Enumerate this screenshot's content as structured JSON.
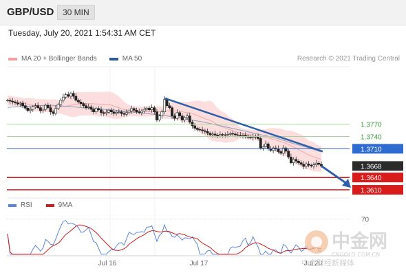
{
  "header": {
    "pair": "GBP/USD",
    "timeframe": "30 MIN"
  },
  "timestamp": "Tuesday, July 20, 2021 1:54:31 AM CET",
  "legend": {
    "items": [
      {
        "label": "MA 20 + Bollinger Bands",
        "color": "#f0a0a0"
      },
      {
        "label": "MA 50",
        "color": "#2e5a93"
      }
    ],
    "credit": "Research © 2021 Trading Central"
  },
  "rsi_legend": {
    "items": [
      {
        "label": "RSI",
        "color": "#5b86d6"
      },
      {
        "label": "9MA",
        "color": "#cc1b1b"
      }
    ]
  },
  "watermark": {
    "title": "中金网",
    "url": "CNGOLD.COM.CN",
    "tagline": "中金财经新媒体"
  },
  "chart_data": {
    "type": "line",
    "instrument": "GBP/USD",
    "timeframe": "30 MIN",
    "ylim": [
      1.3595,
      1.3905
    ],
    "x_tick_labels": [
      "Jul 16",
      "Jul 17",
      "Jul 20"
    ],
    "close_series": [
      1.3828,
      1.3826,
      1.3824,
      1.3822,
      1.3819,
      1.3821,
      1.3815,
      1.3809,
      1.3803,
      1.3806,
      1.3812,
      1.3815,
      1.381,
      1.3803,
      1.3806,
      1.3816,
      1.381,
      1.38,
      1.3796,
      1.3808,
      1.3818,
      1.3828,
      1.3836,
      1.3842,
      1.3838,
      1.3845,
      1.3838,
      1.3828,
      1.3824,
      1.382,
      1.3815,
      1.381,
      1.3812,
      1.3806,
      1.38,
      1.3808,
      1.3805,
      1.3798,
      1.3796,
      1.3799,
      1.3804,
      1.38,
      1.3796,
      1.3799,
      1.38,
      1.3796,
      1.3794,
      1.3798,
      1.3802,
      1.3808,
      1.3804,
      1.38,
      1.3798,
      1.3802,
      1.3806,
      1.3809,
      1.3805,
      1.381,
      1.38,
      1.378,
      1.379,
      1.38,
      1.383,
      1.3815,
      1.381,
      1.379,
      1.3784,
      1.3798,
      1.379,
      1.378,
      1.3786,
      1.379,
      1.3775,
      1.3766,
      1.376,
      1.3757,
      1.3756,
      1.3754,
      1.3752,
      1.3748,
      1.3744,
      1.3746,
      1.3743,
      1.3741,
      1.3745,
      1.3744,
      1.3743,
      1.3745,
      1.3747,
      1.3746,
      1.3744,
      1.3743,
      1.3742,
      1.3743,
      1.3741,
      1.3738,
      1.3737,
      1.3739,
      1.374,
      1.3735,
      1.3712,
      1.3715,
      1.3722,
      1.371,
      1.3706,
      1.3712,
      1.371,
      1.3703,
      1.3699,
      1.3712,
      1.3704,
      1.369,
      1.3676,
      1.3684,
      1.368,
      1.3676,
      1.3672,
      1.3667,
      1.3673,
      1.367,
      1.3668,
      1.3671,
      1.3675,
      1.3672,
      1.3668
    ],
    "ma50_series": [
      1.3811,
      1.3812,
      1.3813,
      1.3814,
      1.3815,
      1.3816,
      1.3816,
      1.3815,
      1.3813,
      1.3812,
      1.381,
      1.3809,
      1.3808,
      1.3806,
      1.3805,
      1.3803,
      1.3801,
      1.3799,
      1.3797,
      1.3795,
      1.3793,
      1.3791,
      1.3788,
      1.3785,
      1.3782,
      1.3779,
      1.3776,
      1.3772,
      1.3768,
      1.3764,
      1.376,
      1.3756,
      1.3752,
      1.3748,
      1.3744,
      1.374,
      1.3736,
      1.373,
      1.3724,
      1.3719,
      1.3714,
      1.3708,
      1.3702
    ],
    "resistance_levels": [
      1.377,
      1.374,
      1.371
    ],
    "current_price": 1.3668,
    "support_levels": [
      1.364,
      1.361
    ],
    "rsi": {
      "levels": [
        70
      ],
      "y_tick_labels": [
        "70"
      ],
      "ylim": [
        20,
        80
      ]
    }
  }
}
